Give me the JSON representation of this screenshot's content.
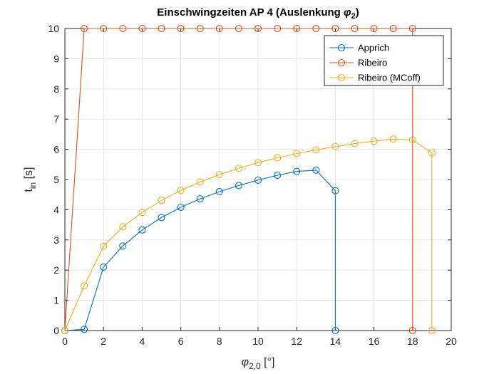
{
  "chart_data": {
    "type": "line",
    "title": "Einschwingzeiten AP 4 (Auslenkung ",
    "title_symbol": "φ",
    "title_symbol_sub": "2",
    "title_close": ")",
    "xlabel_symbol": "φ",
    "xlabel_sub": "2,0",
    "xlabel_unit": " [°]",
    "ylabel_main": "t",
    "ylabel_sub": "in",
    "ylabel_unit": " [s]",
    "xlim": [
      0,
      20
    ],
    "ylim": [
      0,
      10
    ],
    "xticks": [
      "0",
      "2",
      "4",
      "6",
      "8",
      "10",
      "12",
      "14",
      "16",
      "18",
      "20"
    ],
    "yticks": [
      "0",
      "1",
      "2",
      "3",
      "4",
      "5",
      "6",
      "7",
      "8",
      "9",
      "10"
    ],
    "grid": true,
    "legend_position": "top-right",
    "series": [
      {
        "name": "Apprich",
        "color": "#0072BD",
        "x": [
          0,
          1,
          2,
          3,
          4,
          5,
          6,
          7,
          8,
          9,
          10,
          11,
          12,
          13,
          14,
          14
        ],
        "y": [
          0,
          0.04,
          2.1,
          2.8,
          3.33,
          3.74,
          4.08,
          4.36,
          4.6,
          4.8,
          4.98,
          5.14,
          5.27,
          5.31,
          4.63,
          0
        ]
      },
      {
        "name": "Ribeiro",
        "color": "#D95319",
        "x": [
          0,
          1,
          2,
          3,
          4,
          5,
          6,
          7,
          8,
          9,
          10,
          11,
          12,
          13,
          14,
          15,
          16,
          17,
          18,
          18
        ],
        "y": [
          0,
          10,
          10,
          10,
          10,
          10,
          10,
          10,
          10,
          10,
          10,
          10,
          10,
          10,
          10,
          10,
          10,
          10,
          10,
          0
        ]
      },
      {
        "name": "Ribeiro (MCoff)",
        "color": "#EDB120",
        "x": [
          0,
          1,
          2,
          3,
          4,
          5,
          6,
          7,
          8,
          9,
          10,
          11,
          12,
          13,
          14,
          15,
          16,
          17,
          18,
          19,
          19
        ],
        "y": [
          0,
          1.48,
          2.79,
          3.43,
          3.91,
          4.31,
          4.64,
          4.92,
          5.16,
          5.37,
          5.56,
          5.72,
          5.86,
          5.98,
          6.09,
          6.19,
          6.27,
          6.34,
          6.31,
          5.88,
          0
        ]
      }
    ]
  }
}
